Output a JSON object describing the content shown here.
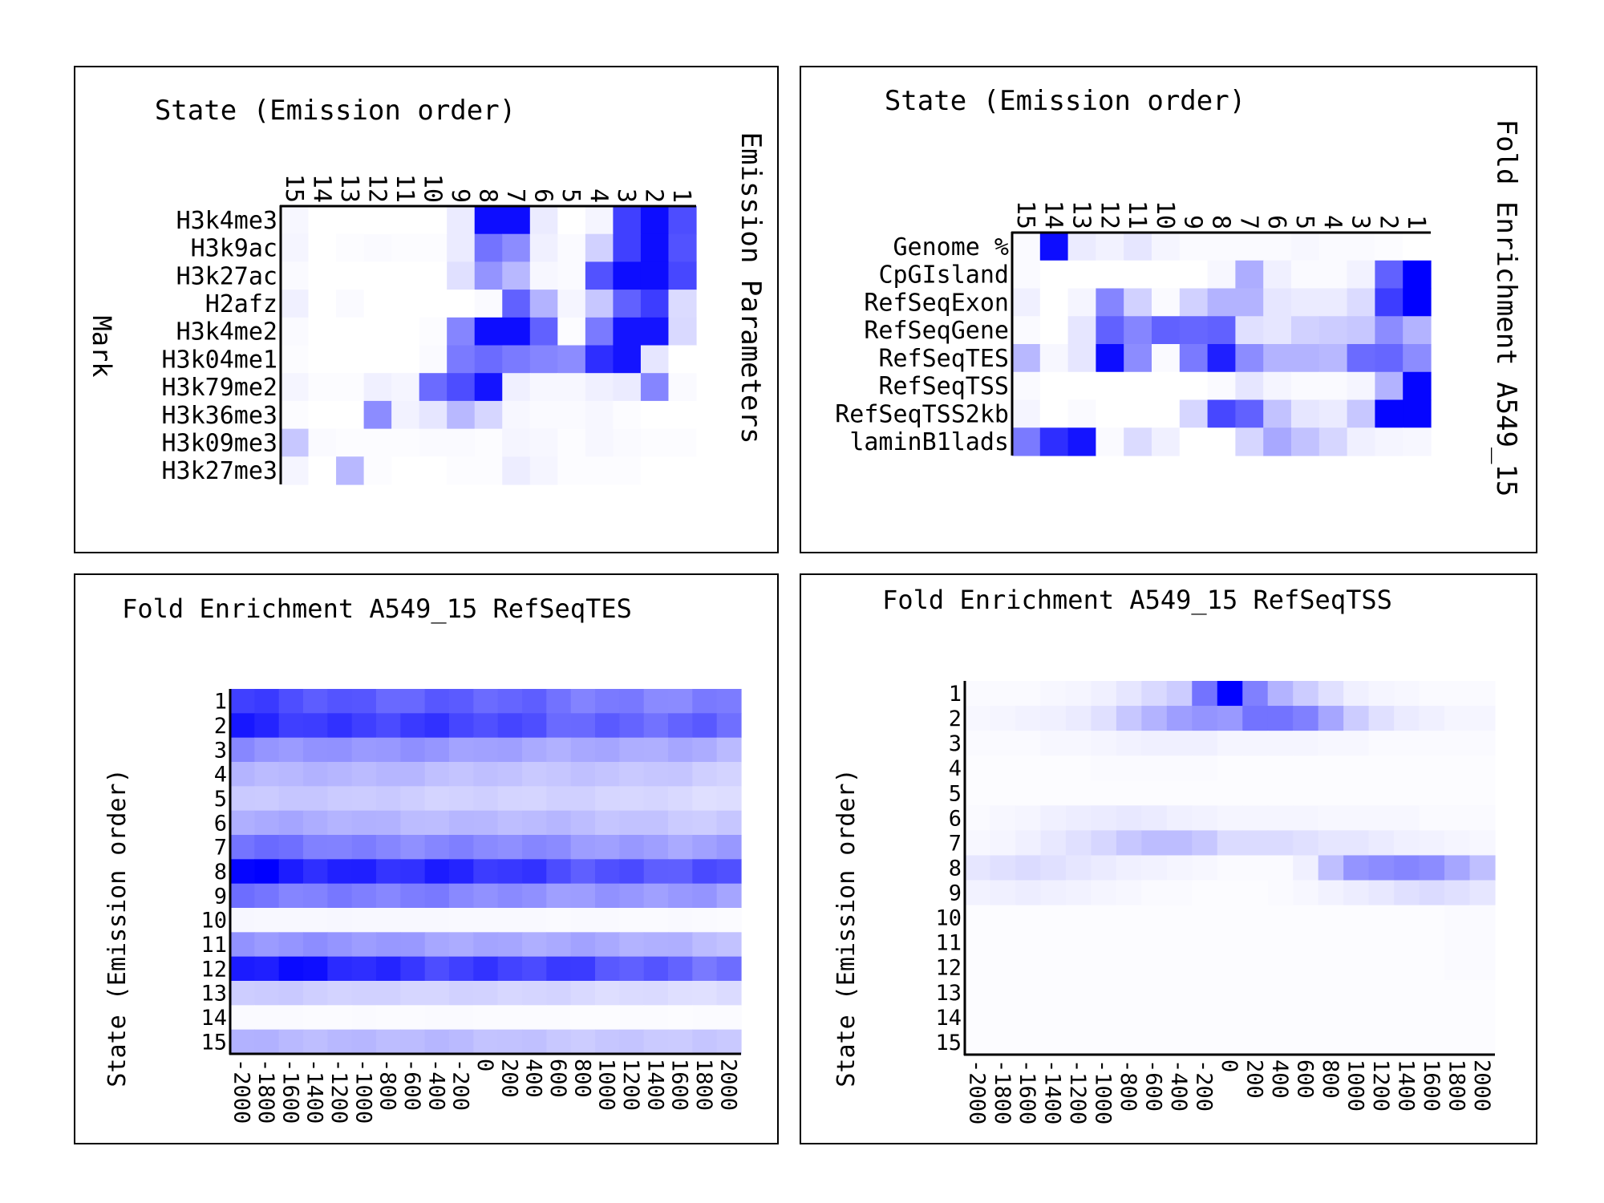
{
  "chart_data": [
    {
      "type": "heatmap",
      "title": "State (Emission order)",
      "side_title": "Emission Parameters",
      "ylabel": "Mark",
      "columns": [
        "15",
        "14",
        "13",
        "12",
        "11",
        "10",
        "9",
        "8",
        "7",
        "6",
        "5",
        "4",
        "3",
        "2",
        "1"
      ],
      "rows": [
        "H3k4me3",
        "H3k9ac",
        "H3k27ac",
        "H2afz",
        "H3k4me2",
        "H3k04me1",
        "H3k79me2",
        "H3k36me3",
        "H3k09me3",
        "H3k27me3"
      ],
      "values": [
        [
          0.03,
          0,
          0,
          0,
          0,
          0,
          0.08,
          0.95,
          0.95,
          0.08,
          0,
          0.04,
          0.75,
          0.95,
          0.7
        ],
        [
          0.04,
          0,
          0.01,
          0.02,
          0.01,
          0.01,
          0.08,
          0.55,
          0.45,
          0.06,
          0.02,
          0.18,
          0.75,
          0.95,
          0.68
        ],
        [
          0.02,
          0,
          0,
          0,
          0,
          0,
          0.12,
          0.42,
          0.28,
          0.03,
          0.02,
          0.68,
          0.95,
          0.95,
          0.72
        ],
        [
          0.06,
          0,
          0.02,
          0,
          0,
          0,
          0,
          0.02,
          0.62,
          0.3,
          0.04,
          0.22,
          0.62,
          0.76,
          0.14
        ],
        [
          0.02,
          0,
          0,
          0,
          0,
          0.01,
          0.48,
          0.95,
          0.95,
          0.62,
          0.01,
          0.52,
          0.92,
          0.92,
          0.15
        ],
        [
          0.01,
          0,
          0,
          0,
          0,
          0.02,
          0.52,
          0.58,
          0.52,
          0.48,
          0.45,
          0.82,
          0.92,
          0.1,
          0
        ],
        [
          0.04,
          0.01,
          0.01,
          0.06,
          0.04,
          0.58,
          0.7,
          0.92,
          0.06,
          0.03,
          0.03,
          0.06,
          0.08,
          0.48,
          0.02
        ],
        [
          0.01,
          0,
          0,
          0.45,
          0.05,
          0.1,
          0.28,
          0.16,
          0.03,
          0.02,
          0.02,
          0.03,
          0.01,
          0,
          0
        ],
        [
          0.22,
          0.02,
          0.01,
          0.01,
          0.01,
          0.02,
          0.02,
          0.01,
          0.04,
          0.03,
          0.01,
          0.03,
          0.02,
          0.01,
          0.01
        ],
        [
          0.04,
          0,
          0.28,
          0.01,
          0,
          0,
          0.01,
          0.01,
          0.07,
          0.04,
          0.01,
          0.01,
          0.01,
          0,
          0
        ]
      ],
      "color_low": "#ffffff",
      "color_high": "#0000ff"
    },
    {
      "type": "heatmap",
      "title": "State (Emission order)",
      "side_title": "Fold Enrichment A549_15",
      "columns": [
        "15",
        "14",
        "13",
        "12",
        "11",
        "10",
        "9",
        "8",
        "7",
        "6",
        "5",
        "4",
        "3",
        "2",
        "1"
      ],
      "rows": [
        "Genome %",
        "CpGIsland",
        "RefSeqExon",
        "RefSeqGene",
        "RefSeqTES",
        "RefSeqTSS",
        "RefSeqTSS2kb",
        "laminB1lads"
      ],
      "values": [
        [
          0.02,
          0.95,
          0.08,
          0.05,
          0.1,
          0.04,
          0.02,
          0.02,
          0.02,
          0.02,
          0.03,
          0.02,
          0.02,
          0.01,
          0
        ],
        [
          0.02,
          0,
          0,
          0,
          0,
          0,
          0,
          0.03,
          0.32,
          0.06,
          0.02,
          0.02,
          0.05,
          0.62,
          1.0
        ],
        [
          0.06,
          0,
          0.04,
          0.48,
          0.18,
          0.02,
          0.18,
          0.3,
          0.3,
          0.1,
          0.08,
          0.08,
          0.14,
          0.76,
          1.0
        ],
        [
          0.02,
          0,
          0.1,
          0.62,
          0.48,
          0.62,
          0.6,
          0.62,
          0.12,
          0.1,
          0.18,
          0.2,
          0.22,
          0.45,
          0.3
        ],
        [
          0.28,
          0.03,
          0.1,
          0.95,
          0.45,
          0.02,
          0.52,
          0.88,
          0.45,
          0.3,
          0.3,
          0.28,
          0.58,
          0.6,
          0.45
        ],
        [
          0.02,
          0,
          0,
          0,
          0,
          0,
          0,
          0.02,
          0.1,
          0.04,
          0.02,
          0.02,
          0.04,
          0.3,
          0.98
        ],
        [
          0.04,
          0,
          0.02,
          0,
          0,
          0,
          0.16,
          0.72,
          0.62,
          0.24,
          0.1,
          0.08,
          0.22,
          0.98,
          0.98
        ],
        [
          0.52,
          0.82,
          0.92,
          0.02,
          0.14,
          0.06,
          0,
          0,
          0.16,
          0.34,
          0.24,
          0.16,
          0.06,
          0.04,
          0.03
        ]
      ],
      "color_low": "#ffffff",
      "color_high": "#0000ff"
    },
    {
      "type": "heatmap",
      "title": "Fold Enrichment A549_15 RefSeqTES",
      "ylabel": "State (Emission order)",
      "x": [
        "-2000",
        "-1800",
        "-1600",
        "-1400",
        "-1200",
        "-1000",
        "-800",
        "-600",
        "-400",
        "-200",
        "0",
        "200",
        "400",
        "600",
        "800",
        "1000",
        "1200",
        "1400",
        "1600",
        "1800",
        "2000"
      ],
      "rows": [
        "1",
        "2",
        "3",
        "4",
        "5",
        "6",
        "7",
        "8",
        "9",
        "10",
        "11",
        "12",
        "13",
        "14",
        "15"
      ],
      "row_levels": [
        0.72,
        0.85,
        0.45,
        0.3,
        0.22,
        0.33,
        0.55,
        0.95,
        0.55,
        0.03,
        0.43,
        0.92,
        0.2,
        0.02,
        0.3
      ],
      "color_low": "#ffffff",
      "color_high": "#0000ff"
    },
    {
      "type": "heatmap",
      "title": "Fold Enrichment A549_15 RefSeqTSS",
      "ylabel": "State (Emission order)",
      "x": [
        "-2000",
        "-1800",
        "-1600",
        "-1400",
        "-1200",
        "-1000",
        "-800",
        "-600",
        "-400",
        "-200",
        "0",
        "200",
        "400",
        "600",
        "800",
        "1000",
        "1200",
        "1400",
        "1600",
        "1800",
        "2000"
      ],
      "rows": [
        "1",
        "2",
        "3",
        "4",
        "5",
        "6",
        "7",
        "8",
        "9",
        "10",
        "11",
        "12",
        "13",
        "14",
        "15"
      ],
      "values": [
        [
          0.02,
          0.02,
          0.02,
          0.03,
          0.04,
          0.06,
          0.1,
          0.15,
          0.2,
          0.55,
          1.0,
          0.5,
          0.3,
          0.2,
          0.12,
          0.06,
          0.04,
          0.03,
          0.02,
          0.02,
          0.02
        ],
        [
          0.03,
          0.04,
          0.05,
          0.06,
          0.08,
          0.12,
          0.22,
          0.3,
          0.38,
          0.42,
          0.4,
          0.55,
          0.55,
          0.5,
          0.35,
          0.2,
          0.12,
          0.08,
          0.06,
          0.04,
          0.04
        ],
        [
          0.02,
          0.02,
          0.02,
          0.03,
          0.03,
          0.04,
          0.05,
          0.06,
          0.06,
          0.06,
          0.04,
          0.04,
          0.04,
          0.04,
          0.03,
          0.03,
          0.02,
          0.02,
          0.02,
          0.02,
          0.02
        ],
        [
          0.01,
          0.01,
          0.01,
          0.01,
          0.01,
          0.02,
          0.02,
          0.02,
          0.02,
          0.02,
          0.01,
          0.01,
          0.01,
          0.01,
          0.01,
          0.01,
          0.01,
          0.01,
          0.01,
          0.01,
          0.01
        ],
        [
          0.01,
          0.01,
          0.01,
          0.01,
          0.01,
          0.01,
          0.01,
          0.01,
          0.01,
          0.01,
          0.01,
          0.01,
          0.01,
          0.01,
          0.01,
          0.01,
          0.01,
          0.01,
          0.01,
          0.01,
          0.01
        ],
        [
          0.02,
          0.03,
          0.04,
          0.06,
          0.07,
          0.08,
          0.09,
          0.08,
          0.06,
          0.05,
          0.04,
          0.04,
          0.04,
          0.04,
          0.03,
          0.03,
          0.03,
          0.03,
          0.02,
          0.02,
          0.02
        ],
        [
          0.03,
          0.04,
          0.06,
          0.09,
          0.12,
          0.16,
          0.22,
          0.26,
          0.26,
          0.22,
          0.14,
          0.14,
          0.14,
          0.12,
          0.1,
          0.1,
          0.08,
          0.06,
          0.05,
          0.04,
          0.03
        ],
        [
          0.1,
          0.12,
          0.14,
          0.12,
          0.1,
          0.08,
          0.06,
          0.05,
          0.04,
          0.03,
          0.02,
          0.02,
          0.02,
          0.06,
          0.25,
          0.42,
          0.45,
          0.48,
          0.45,
          0.35,
          0.25
        ],
        [
          0.05,
          0.06,
          0.07,
          0.06,
          0.05,
          0.04,
          0.03,
          0.02,
          0.02,
          0.01,
          0.01,
          0.01,
          0.02,
          0.03,
          0.05,
          0.07,
          0.09,
          0.12,
          0.14,
          0.12,
          0.1
        ],
        [
          0.01,
          0.01,
          0.01,
          0.01,
          0.01,
          0.01,
          0.01,
          0.01,
          0.01,
          0.01,
          0.01,
          0.01,
          0.01,
          0.01,
          0.01,
          0.01,
          0.01,
          0.01,
          0.01,
          0.02,
          0.02
        ],
        [
          0.01,
          0.01,
          0.01,
          0.01,
          0.01,
          0.01,
          0.01,
          0.01,
          0.01,
          0.01,
          0.01,
          0.01,
          0.01,
          0.01,
          0.01,
          0.01,
          0.01,
          0.01,
          0.01,
          0.02,
          0.02
        ],
        [
          0.01,
          0.01,
          0.01,
          0.01,
          0.01,
          0.01,
          0.01,
          0.01,
          0.01,
          0.01,
          0.01,
          0.01,
          0.01,
          0.01,
          0.01,
          0.01,
          0.01,
          0.01,
          0.01,
          0.02,
          0.02
        ],
        [
          0.01,
          0.01,
          0.01,
          0.01,
          0.01,
          0.01,
          0.01,
          0.01,
          0.01,
          0.01,
          0.01,
          0.01,
          0.01,
          0.01,
          0.01,
          0.01,
          0.01,
          0.01,
          0.01,
          0.01,
          0.01
        ],
        [
          0.01,
          0.01,
          0.01,
          0.01,
          0.01,
          0.01,
          0.01,
          0.01,
          0.01,
          0.01,
          0.01,
          0.01,
          0.01,
          0.01,
          0.01,
          0.01,
          0.01,
          0.01,
          0.01,
          0.01,
          0.01
        ],
        [
          0.01,
          0.01,
          0.01,
          0.01,
          0.01,
          0.01,
          0.01,
          0.01,
          0.01,
          0.01,
          0.01,
          0.01,
          0.01,
          0.01,
          0.01,
          0.01,
          0.01,
          0.01,
          0.01,
          0.01,
          0.01
        ]
      ],
      "color_low": "#ffffff",
      "color_high": "#0000ff"
    }
  ]
}
